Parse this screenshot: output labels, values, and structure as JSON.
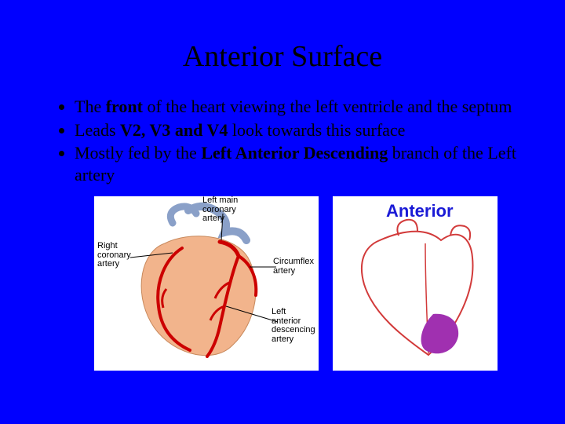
{
  "slide": {
    "title": "Anterior Surface",
    "background_color": "#0000ff",
    "text_color": "#000000",
    "title_fontsize": 38,
    "body_fontsize": 22
  },
  "bullets": [
    {
      "pre": "The ",
      "bold": "front",
      "post": " of the heart viewing the left ventricle and the septum"
    },
    {
      "pre": "Leads ",
      "bold": "V2, V3 and V4",
      "post": " look towards this surface"
    },
    {
      "pre": "Mostly fed by the ",
      "bold": "Left Anterior Descending",
      "post": " branch of the Left artery"
    }
  ],
  "figure1": {
    "type": "infographic",
    "background_color": "#ffffff",
    "heart_fill": "#f2b48c",
    "artery_color": "#cc0000",
    "vessel_blue": "#8aa0c8",
    "label_color": "#000000",
    "label_fontsize": 11,
    "leader_color": "#000000",
    "labels": {
      "right_coronary": "Right\ncoronary\nartery",
      "left_main": "Left main\ncoronary\nartery",
      "circumflex": "Circumflex\nartery",
      "lad": "Left\nanterior\ndescencing\nartery"
    }
  },
  "figure2": {
    "type": "infographic",
    "background_color": "#ffffff",
    "title": "Anterior",
    "title_color": "#1a1ad6",
    "title_fontsize": 22,
    "outline_color": "#d23a3a",
    "outline_width": 2,
    "region_fill": "#a030b0",
    "region_opacity": 1.0
  }
}
